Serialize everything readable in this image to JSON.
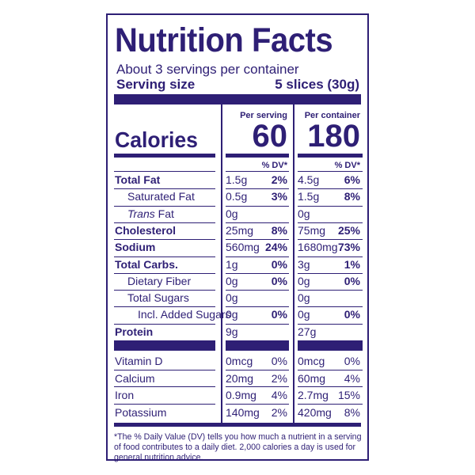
{
  "title": "Nutrition Facts",
  "servings_per_container": "About 3 servings per container",
  "serving_size_label": "Serving size",
  "serving_size_value": "5 slices (30g)",
  "column_headers": {
    "per_serving": "Per serving",
    "per_container": "Per container"
  },
  "calories": {
    "label": "Calories",
    "per_serving": "60",
    "per_container": "180"
  },
  "dv_header": "% DV*",
  "nutrients": [
    {
      "name": "Total Fat",
      "bold": true,
      "ps_amount": "1.5g",
      "ps_dv": "2%",
      "pc_amount": "4.5g",
      "pc_dv": "6%"
    },
    {
      "name": "Saturated Fat",
      "bold": false,
      "ps_amount": "0.5g",
      "ps_dv": "3%",
      "pc_amount": "1.5g",
      "pc_dv": "8%"
    },
    {
      "name": "Trans Fat",
      "name_italic_part": "Trans",
      "name_rest": " Fat",
      "bold": false,
      "ps_amount": "0g",
      "ps_dv": "",
      "pc_amount": "0g",
      "pc_dv": ""
    },
    {
      "name": "Cholesterol",
      "bold": true,
      "ps_amount": "25mg",
      "ps_dv": "8%",
      "pc_amount": "75mg",
      "pc_dv": "25%"
    },
    {
      "name": "Sodium",
      "bold": true,
      "ps_amount": "560mg",
      "ps_dv": "24%",
      "pc_amount": "1680mg",
      "pc_dv": "73%"
    },
    {
      "name": "Total Carbs.",
      "bold": true,
      "ps_amount": "1g",
      "ps_dv": "0%",
      "pc_amount": "3g",
      "pc_dv": "1%"
    },
    {
      "name": "Dietary Fiber",
      "bold": false,
      "ps_amount": "0g",
      "ps_dv": "0%",
      "pc_amount": "0g",
      "pc_dv": "0%"
    },
    {
      "name": "Total Sugars",
      "bold": false,
      "ps_amount": "0g",
      "ps_dv": "",
      "pc_amount": "0g",
      "pc_dv": ""
    },
    {
      "name": "Incl. Added Sugars",
      "bold": false,
      "ps_amount": "0g",
      "ps_dv": "0%",
      "pc_amount": "0g",
      "pc_dv": "0%"
    },
    {
      "name": "Protein",
      "bold": true,
      "ps_amount": "9g",
      "ps_dv": "",
      "pc_amount": "27g",
      "pc_dv": ""
    }
  ],
  "vitamins": [
    {
      "name": "Vitamin D",
      "ps_amount": "0mcg",
      "ps_dv": "0%",
      "pc_amount": "0mcg",
      "pc_dv": "0%"
    },
    {
      "name": "Calcium",
      "ps_amount": "20mg",
      "ps_dv": "2%",
      "pc_amount": "60mg",
      "pc_dv": "4%"
    },
    {
      "name": "Iron",
      "ps_amount": "0.9mg",
      "ps_dv": "4%",
      "pc_amount": "2.7mg",
      "pc_dv": "15%"
    },
    {
      "name": "Potassium",
      "ps_amount": "140mg",
      "ps_dv": "2%",
      "pc_amount": "420mg",
      "pc_dv": "8%"
    }
  ],
  "footnote": "*The % Daily Value (DV) tells you how much a nutrient in a serving of food contributes to a daily diet. 2,000 calories a day is used for general nutrition advice.",
  "colors": {
    "ink": "#2e1f75",
    "background": "#ffffff"
  }
}
